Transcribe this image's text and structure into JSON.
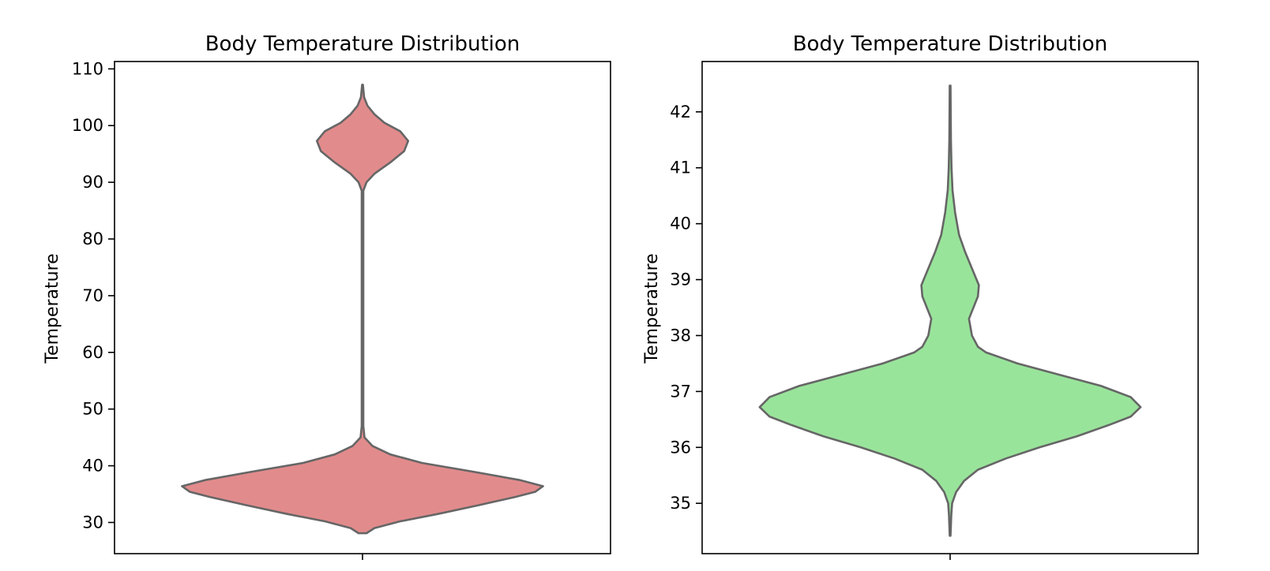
{
  "chart_data": [
    {
      "type": "violin",
      "title": "Body Temperature Distribution",
      "xlabel": "",
      "ylabel": "Temperature",
      "ylim": [
        24.5,
        111.3
      ],
      "yticks": [
        30,
        40,
        50,
        60,
        70,
        80,
        90,
        100,
        110
      ],
      "fill_color": "#e28b8c",
      "edge_color": "#666666",
      "density_profile": [
        {
          "y": 28.1,
          "w": 0.02
        },
        {
          "y": 29.0,
          "w": 0.06
        },
        {
          "y": 30.2,
          "w": 0.19
        },
        {
          "y": 31.5,
          "w": 0.38
        },
        {
          "y": 33.0,
          "w": 0.58
        },
        {
          "y": 34.5,
          "w": 0.77
        },
        {
          "y": 35.4,
          "w": 0.87
        },
        {
          "y": 36.4,
          "w": 0.91
        },
        {
          "y": 37.5,
          "w": 0.79
        },
        {
          "y": 39.0,
          "w": 0.55
        },
        {
          "y": 40.5,
          "w": 0.3
        },
        {
          "y": 42.0,
          "w": 0.14
        },
        {
          "y": 43.5,
          "w": 0.05
        },
        {
          "y": 45.0,
          "w": 0.01
        },
        {
          "y": 47.0,
          "w": 0.004
        },
        {
          "y": 60.0,
          "w": 0.004
        },
        {
          "y": 88.5,
          "w": 0.004
        },
        {
          "y": 90.0,
          "w": 0.02
        },
        {
          "y": 91.5,
          "w": 0.06
        },
        {
          "y": 93.5,
          "w": 0.14
        },
        {
          "y": 95.5,
          "w": 0.21
        },
        {
          "y": 97.3,
          "w": 0.23
        },
        {
          "y": 99.0,
          "w": 0.19
        },
        {
          "y": 100.5,
          "w": 0.11
        },
        {
          "y": 102.0,
          "w": 0.06
        },
        {
          "y": 103.5,
          "w": 0.025
        },
        {
          "y": 105.0,
          "w": 0.008
        },
        {
          "y": 107.2,
          "w": 0.002
        }
      ]
    },
    {
      "type": "violin",
      "title": "Body Temperature Distribution",
      "xlabel": "",
      "ylabel": "Temperature",
      "ylim": [
        34.1,
        42.9
      ],
      "yticks": [
        35,
        36,
        37,
        38,
        39,
        40,
        41,
        42
      ],
      "fill_color": "#99e49b",
      "edge_color": "#666666",
      "density_profile": [
        {
          "y": 34.42,
          "w": 0.002
        },
        {
          "y": 34.8,
          "w": 0.006
        },
        {
          "y": 35.0,
          "w": 0.01
        },
        {
          "y": 35.2,
          "w": 0.03
        },
        {
          "y": 35.4,
          "w": 0.07
        },
        {
          "y": 35.6,
          "w": 0.14
        },
        {
          "y": 35.8,
          "w": 0.28
        },
        {
          "y": 36.0,
          "w": 0.45
        },
        {
          "y": 36.2,
          "w": 0.64
        },
        {
          "y": 36.4,
          "w": 0.8
        },
        {
          "y": 36.55,
          "w": 0.91
        },
        {
          "y": 36.72,
          "w": 0.96
        },
        {
          "y": 36.9,
          "w": 0.91
        },
        {
          "y": 37.1,
          "w": 0.76
        },
        {
          "y": 37.3,
          "w": 0.55
        },
        {
          "y": 37.5,
          "w": 0.34
        },
        {
          "y": 37.7,
          "w": 0.18
        },
        {
          "y": 37.8,
          "w": 0.14
        },
        {
          "y": 38.0,
          "w": 0.11
        },
        {
          "y": 38.3,
          "w": 0.095
        },
        {
          "y": 38.7,
          "w": 0.14
        },
        {
          "y": 38.9,
          "w": 0.145
        },
        {
          "y": 39.2,
          "w": 0.11
        },
        {
          "y": 39.5,
          "w": 0.075
        },
        {
          "y": 39.8,
          "w": 0.045
        },
        {
          "y": 40.2,
          "w": 0.025
        },
        {
          "y": 40.6,
          "w": 0.012
        },
        {
          "y": 41.0,
          "w": 0.007
        },
        {
          "y": 41.5,
          "w": 0.004
        },
        {
          "y": 42.0,
          "w": 0.003
        },
        {
          "y": 42.47,
          "w": 0.002
        }
      ]
    }
  ]
}
